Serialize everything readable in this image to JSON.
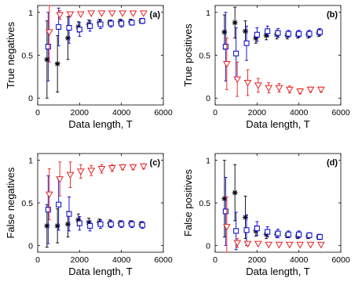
{
  "chart_data": [
    {
      "type": "scatter",
      "panel": "(a)",
      "xlabel": "Data length, T",
      "ylabel": "True negatives",
      "xlim": [
        0,
        6000
      ],
      "ylim": [
        -0.08,
        1.08
      ],
      "xticks": [
        0,
        2000,
        4000,
        6000
      ],
      "yticks": [
        0,
        0.5,
        1
      ],
      "error_bars": true,
      "series": [
        {
          "marker": "star",
          "color": "#000000",
          "x": [
            500,
            1000,
            1500,
            2000,
            2500,
            3000,
            3500,
            4000,
            4500,
            5000
          ],
          "y": [
            0.45,
            0.4,
            0.7,
            0.83,
            0.86,
            0.88,
            0.88,
            0.89,
            0.89,
            0.9
          ],
          "err": [
            0.45,
            0.33,
            0.25,
            0.06,
            0.05,
            0.04,
            0.03,
            0.03,
            0.03,
            0.03
          ]
        },
        {
          "marker": "square",
          "color": "#0000cc",
          "x": [
            500,
            1000,
            1500,
            2000,
            2500,
            3000,
            3500,
            4000,
            4500,
            5000
          ],
          "y": [
            0.6,
            0.83,
            0.82,
            0.8,
            0.84,
            0.86,
            0.87,
            0.87,
            0.88,
            0.9
          ],
          "err": [
            0.4,
            0.22,
            0.18,
            0.08,
            0.06,
            0.05,
            0.04,
            0.04,
            0.03,
            0.03
          ]
        },
        {
          "marker": "triangle-down",
          "color": "#e62020",
          "x": [
            500,
            1000,
            1500,
            2000,
            2500,
            3000,
            3500,
            4000,
            4500,
            5000
          ],
          "y": [
            0.77,
            0.97,
            0.98,
            0.98,
            0.99,
            0.99,
            0.99,
            0.99,
            0.99,
            0.99
          ],
          "err": [
            0.35,
            0.05,
            0.02,
            0.01,
            0.01,
            0.01,
            0.01,
            0.01,
            0.01,
            0.01
          ]
        }
      ]
    },
    {
      "type": "scatter",
      "panel": "(b)",
      "xlabel": "Data length, T",
      "ylabel": "True positives",
      "xlim": [
        0,
        6000
      ],
      "ylim": [
        -0.08,
        1.08
      ],
      "xticks": [
        0,
        2000,
        4000,
        6000
      ],
      "yticks": [
        0,
        0.5,
        1
      ],
      "error_bars": true,
      "series": [
        {
          "marker": "star",
          "color": "#000000",
          "x": [
            500,
            1000,
            1500,
            2000,
            2500,
            3000,
            3500,
            4000,
            4500,
            5000
          ],
          "y": [
            0.77,
            0.88,
            0.78,
            0.7,
            0.73,
            0.74,
            0.73,
            0.74,
            0.74,
            0.76
          ],
          "err": [
            0.2,
            0.18,
            0.12,
            0.06,
            0.05,
            0.05,
            0.04,
            0.04,
            0.04,
            0.04
          ]
        },
        {
          "marker": "square",
          "color": "#0000cc",
          "x": [
            500,
            1000,
            1500,
            2000,
            2500,
            3000,
            3500,
            4000,
            4500,
            5000
          ],
          "y": [
            0.6,
            0.52,
            0.64,
            0.74,
            0.78,
            0.76,
            0.75,
            0.75,
            0.75,
            0.77
          ],
          "err": [
            0.4,
            0.3,
            0.2,
            0.08,
            0.06,
            0.05,
            0.04,
            0.04,
            0.04,
            0.04
          ]
        },
        {
          "marker": "triangle-down",
          "color": "#e62020",
          "x": [
            500,
            1000,
            1500,
            2000,
            2500,
            3000,
            3500,
            4000,
            4500,
            5000
          ],
          "y": [
            0.4,
            0.22,
            0.18,
            0.15,
            0.12,
            0.12,
            0.1,
            0.08,
            0.1,
            0.1
          ],
          "err": [
            0.3,
            0.2,
            0.15,
            0.08,
            0.06,
            0.05,
            0.04,
            0.03,
            0.03,
            0.03
          ]
        }
      ]
    },
    {
      "type": "scatter",
      "panel": "(c)",
      "xlabel": "Data length, T",
      "ylabel": "False negatives",
      "xlim": [
        0,
        6000
      ],
      "ylim": [
        -0.08,
        1.08
      ],
      "xticks": [
        0,
        2000,
        4000,
        6000
      ],
      "yticks": [
        0,
        0.5,
        1
      ],
      "error_bars": true,
      "series": [
        {
          "marker": "star",
          "color": "#000000",
          "x": [
            500,
            1000,
            1500,
            2000,
            2500,
            3000,
            3500,
            4000,
            4500,
            5000
          ],
          "y": [
            0.23,
            0.23,
            0.25,
            0.3,
            0.27,
            0.27,
            0.26,
            0.26,
            0.26,
            0.25
          ],
          "err": [
            0.25,
            0.2,
            0.15,
            0.07,
            0.05,
            0.04,
            0.04,
            0.03,
            0.03,
            0.03
          ]
        },
        {
          "marker": "square",
          "color": "#0000cc",
          "x": [
            500,
            1000,
            1500,
            2000,
            2500,
            3000,
            3500,
            4000,
            4500,
            5000
          ],
          "y": [
            0.42,
            0.48,
            0.37,
            0.26,
            0.23,
            0.25,
            0.25,
            0.25,
            0.25,
            0.24
          ],
          "err": [
            0.4,
            0.3,
            0.2,
            0.08,
            0.06,
            0.05,
            0.04,
            0.04,
            0.04,
            0.04
          ]
        },
        {
          "marker": "triangle-down",
          "color": "#e62020",
          "x": [
            500,
            1000,
            1500,
            2000,
            2500,
            3000,
            3500,
            4000,
            4500,
            5000
          ],
          "y": [
            0.6,
            0.78,
            0.83,
            0.87,
            0.88,
            0.9,
            0.91,
            0.92,
            0.92,
            0.93
          ],
          "err": [
            0.3,
            0.2,
            0.15,
            0.08,
            0.06,
            0.05,
            0.04,
            0.03,
            0.03,
            0.03
          ]
        }
      ]
    },
    {
      "type": "scatter",
      "panel": "(d)",
      "xlabel": "Data length, T",
      "ylabel": "False positives",
      "xlim": [
        0,
        6000
      ],
      "ylim": [
        -0.08,
        1.08
      ],
      "xticks": [
        0,
        2000,
        4000,
        6000
      ],
      "yticks": [
        0,
        0.5,
        1
      ],
      "error_bars": true,
      "series": [
        {
          "marker": "star",
          "color": "#000000",
          "x": [
            500,
            1000,
            1500,
            2000,
            2500,
            3000,
            3500,
            4000,
            4500,
            5000
          ],
          "y": [
            0.55,
            0.62,
            0.33,
            0.17,
            0.13,
            0.13,
            0.12,
            0.11,
            0.11,
            0.1
          ],
          "err": [
            0.45,
            0.33,
            0.25,
            0.06,
            0.05,
            0.04,
            0.03,
            0.03,
            0.03,
            0.03
          ]
        },
        {
          "marker": "square",
          "color": "#0000cc",
          "x": [
            500,
            1000,
            1500,
            2000,
            2500,
            3000,
            3500,
            4000,
            4500,
            5000
          ],
          "y": [
            0.4,
            0.17,
            0.18,
            0.2,
            0.16,
            0.14,
            0.13,
            0.13,
            0.12,
            0.1
          ],
          "err": [
            0.4,
            0.22,
            0.18,
            0.08,
            0.06,
            0.05,
            0.04,
            0.04,
            0.03,
            0.03
          ]
        },
        {
          "marker": "triangle-down",
          "color": "#e62020",
          "x": [
            500,
            1000,
            1500,
            2000,
            2500,
            3000,
            3500,
            4000,
            4500,
            5000
          ],
          "y": [
            0.22,
            0.03,
            0.02,
            0.02,
            0.01,
            0.01,
            0.01,
            0.01,
            0.01,
            0.01
          ],
          "err": [
            0.35,
            0.05,
            0.02,
            0.01,
            0.01,
            0.01,
            0.01,
            0.01,
            0.01,
            0.01
          ]
        }
      ]
    }
  ]
}
